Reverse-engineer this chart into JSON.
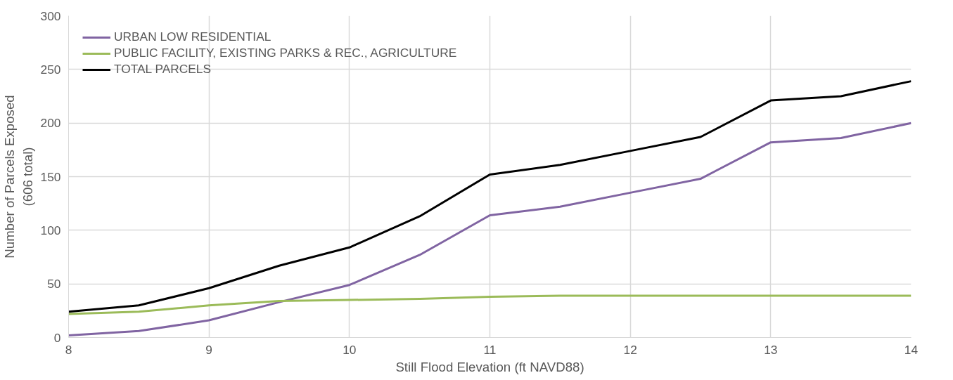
{
  "chart_data": {
    "type": "line",
    "xlabel": "Still Flood Elevation (ft NAVD88)",
    "ylabel": "Number of Parcels Exposed\n(606 total)",
    "x": [
      8,
      8.5,
      9,
      9.5,
      10,
      10.5,
      11,
      11.5,
      12,
      12.5,
      13,
      13.5,
      14
    ],
    "series": [
      {
        "name": "URBAN LOW RESIDENTIAL",
        "color": "#8064a2",
        "values": [
          2,
          6,
          16,
          33,
          49,
          77,
          114,
          122,
          135,
          148,
          182,
          186,
          200
        ]
      },
      {
        "name": "PUBLIC FACILITY, EXISTING PARKS & REC., AGRICULTURE",
        "color": "#9bbb59",
        "values": [
          22,
          24,
          30,
          34,
          35,
          36,
          38,
          39,
          39,
          39,
          39,
          39,
          39
        ]
      },
      {
        "name": "TOTAL PARCELS",
        "color": "#000000",
        "values": [
          24,
          30,
          46,
          67,
          84,
          113,
          152,
          161,
          174,
          187,
          221,
          225,
          239
        ]
      }
    ],
    "xlim": [
      8,
      14
    ],
    "xticks": [
      8,
      9,
      10,
      11,
      12,
      13,
      14
    ],
    "ylim": [
      0,
      300
    ],
    "yticks": [
      0,
      50,
      100,
      150,
      200,
      250,
      300
    ],
    "grid": true,
    "legend": "top left",
    "line_style": "solid"
  }
}
